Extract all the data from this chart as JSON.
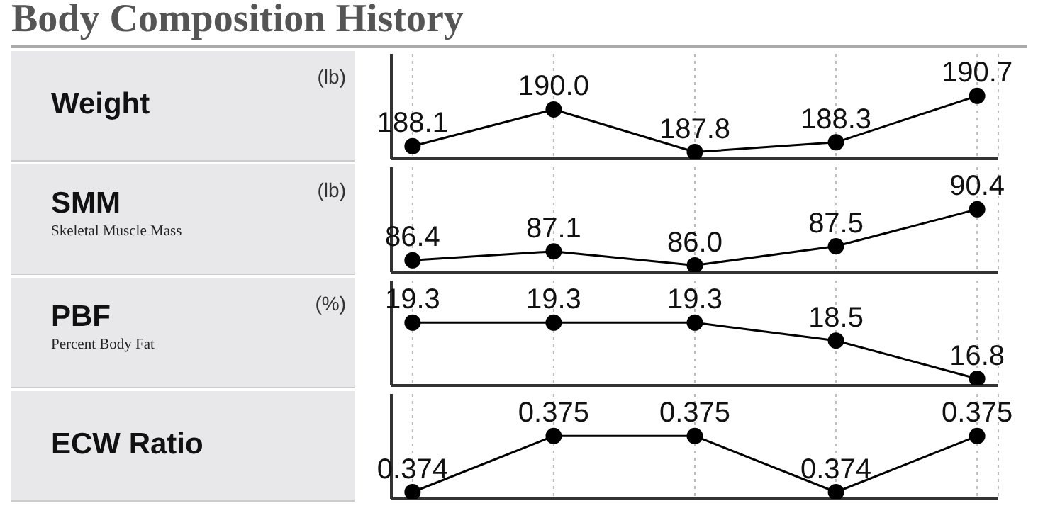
{
  "chart_data": [
    {
      "type": "line",
      "title": "Body Composition History",
      "ylabel": "Weight",
      "annotations": [
        "(lb)"
      ],
      "categories": [
        null,
        null,
        null,
        null,
        null
      ],
      "values": [
        188.1,
        190.0,
        187.8,
        188.3,
        190.7
      ],
      "value_labels": [
        "188.1",
        "190.0",
        "187.8",
        "188.3",
        "190.7"
      ],
      "color": "#000000",
      "marker": "circle",
      "grid": "x"
    },
    {
      "type": "line",
      "ylabel": "SMM",
      "annotations": [
        "(lb)",
        "Skeletal Muscle Mass"
      ],
      "categories": [
        null,
        null,
        null,
        null,
        null
      ],
      "values": [
        86.4,
        87.1,
        86.0,
        87.5,
        90.4
      ],
      "value_labels": [
        "86.4",
        "87.1",
        "86.0",
        "87.5",
        "90.4"
      ],
      "color": "#000000",
      "marker": "circle",
      "grid": "x"
    },
    {
      "type": "line",
      "ylabel": "PBF",
      "annotations": [
        "(%)",
        "Percent Body Fat"
      ],
      "categories": [
        null,
        null,
        null,
        null,
        null
      ],
      "values": [
        19.3,
        19.3,
        19.3,
        18.5,
        16.8
      ],
      "value_labels": [
        "19.3",
        "19.3",
        "19.3",
        "18.5",
        "16.8"
      ],
      "color": "#000000",
      "marker": "circle",
      "grid": "x"
    },
    {
      "type": "line",
      "ylabel": "ECW Ratio",
      "categories": [
        null,
        null,
        null,
        null,
        null
      ],
      "values": [
        0.374,
        0.375,
        0.375,
        0.374,
        0.375
      ],
      "value_labels": [
        "0.374",
        "0.375",
        "0.375",
        "0.374",
        "0.375"
      ],
      "color": "#000000",
      "marker": "circle",
      "grid": "x"
    }
  ]
}
